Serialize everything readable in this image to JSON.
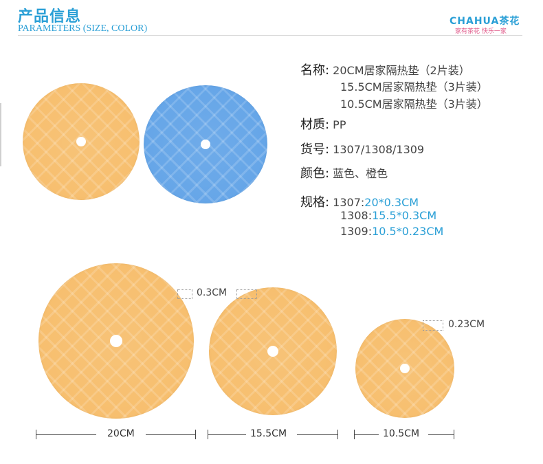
{
  "header": {
    "title_cn": "产品信息",
    "title_en": "PARAMETERS (SIZE, COLOR)",
    "brand_name": "CHAHUA茶花",
    "brand_slogan": "家有茶花  快乐一家"
  },
  "colors": {
    "accent": "#2a9fd6",
    "orange_disc": "#f7bf6f",
    "blue_disc": "#66a6e8"
  },
  "info": {
    "name_label": "名称:",
    "name_lines": [
      "20CM居家隔热垫（2片装）",
      "15.5CM居家隔热垫（3片装）",
      "10.5CM居家隔热垫（3片装）"
    ],
    "material_label": "材质:",
    "material_value": "PP",
    "item_label": "货号:",
    "item_value": "1307/1308/1309",
    "color_label": "颜色:",
    "color_value": "蓝色、橙色",
    "spec_label": "规格:",
    "specs": [
      {
        "code": "1307:",
        "value": "20*0.3CM"
      },
      {
        "code": "1308:",
        "value": "15.5*0.3CM"
      },
      {
        "code": "1309:",
        "value": "10.5*0.23CM"
      }
    ]
  },
  "dimensions": {
    "thickness_large": "0.3CM",
    "thickness_small": "0.23CM",
    "diameter_large": "20CM",
    "diameter_medium": "15.5CM",
    "diameter_small": "10.5CM"
  }
}
